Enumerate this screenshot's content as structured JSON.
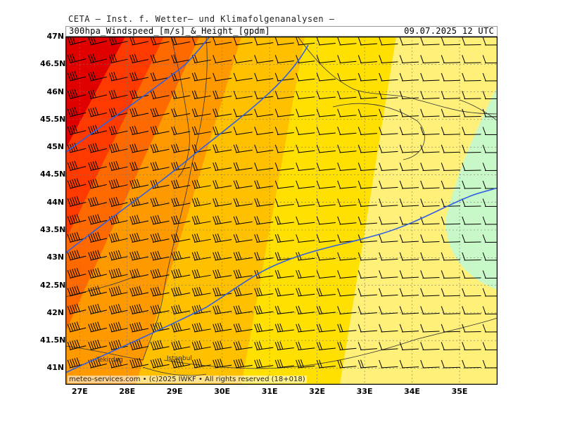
{
  "header": {
    "institute": "CETA – Inst. f. Wetter– und Klimafolgenanalysen –",
    "product": "300hpa_Windspeed_[m/s]_&_Height_[gpdm]",
    "datetime": "09.07.2025  12 UTC"
  },
  "footer": {
    "copyright": "meteo-services.com • (c)2025 IWKF • All rights reserved (18+018)"
  },
  "cities": [
    {
      "name": "Tekirdag",
      "lon": 27.5,
      "lat": 40.98
    },
    {
      "name": "Istanbul",
      "lon": 28.98,
      "lat": 41.01
    }
  ],
  "axes": {
    "lat_labels": [
      "47N",
      "46.5N",
      "46N",
      "45.5N",
      "45N",
      "44.5N",
      "44N",
      "43.5N",
      "43N",
      "42.5N",
      "42N",
      "41.5N",
      "41N"
    ],
    "lon_labels": [
      "27E",
      "28E",
      "29E",
      "30E",
      "31E",
      "32E",
      "33E",
      "34E",
      "35E"
    ],
    "lon_range": [
      26.7,
      35.8
    ],
    "lat_range": [
      40.7,
      47.0
    ]
  },
  "chart_data": {
    "type": "heatmap",
    "fields": [
      "wind speed 300 hPa (m/s) as filled bands",
      "geopotential height 300 hPa (gpdm) as blue contours",
      "wind barbs"
    ],
    "wind_direction": "west-southwest to west",
    "speed_band_colors": [
      "#e00000",
      "#ff3a00",
      "#ff6a00",
      "#ff9900",
      "#ffc000",
      "#ffe000",
      "#fff07a",
      "#c8f8c8"
    ],
    "height_contour_color": "#3060e0"
  }
}
